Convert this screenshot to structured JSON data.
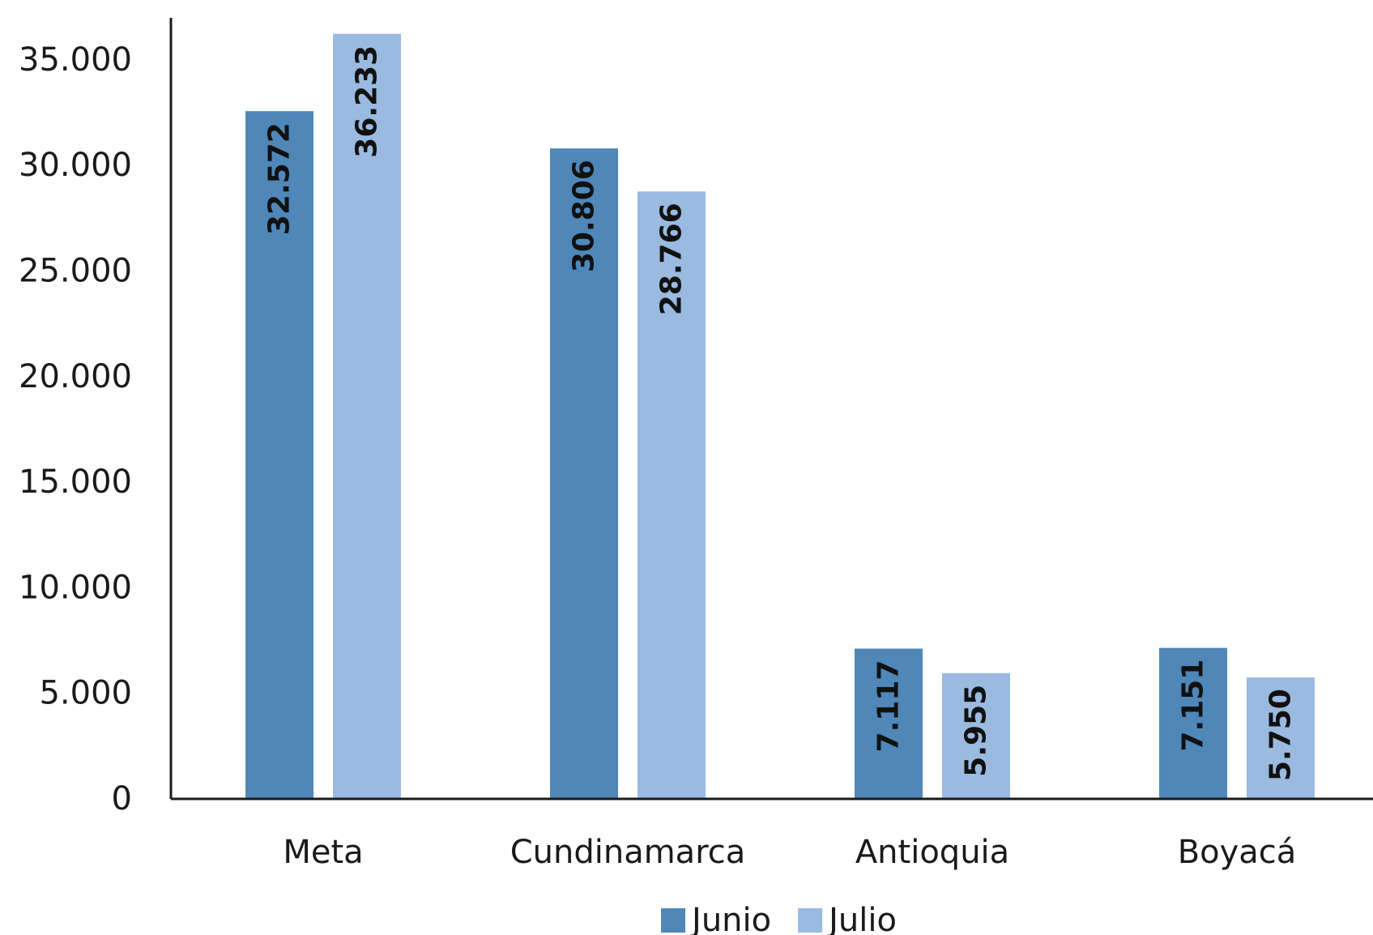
{
  "chart_data": {
    "type": "bar",
    "categories": [
      "Meta",
      "Cundinamarca",
      "Antioquia",
      "Boyacá"
    ],
    "series": [
      {
        "name": "Junio",
        "color": "#4f87b9",
        "values": [
          32572,
          30806,
          7117,
          7151
        ],
        "labels": [
          "32.572",
          "30.806",
          "7.117",
          "7.151"
        ]
      },
      {
        "name": "Julio",
        "color": "#9abae0",
        "values": [
          36233,
          28766,
          5955,
          5750
        ],
        "labels": [
          "36.233",
          "28.766",
          "5.955",
          "5.750"
        ]
      }
    ],
    "ylim": [
      0,
      35000
    ],
    "yticks": [
      0,
      5000,
      10000,
      15000,
      20000,
      25000,
      30000,
      35000
    ],
    "ytick_labels": [
      "0",
      "5.000",
      "10.000",
      "15.000",
      "20.000",
      "25.000",
      "30.000",
      "35.000"
    ],
    "grid": false,
    "legend": "bottom-center",
    "title": "",
    "xlabel": "",
    "ylabel": ""
  }
}
